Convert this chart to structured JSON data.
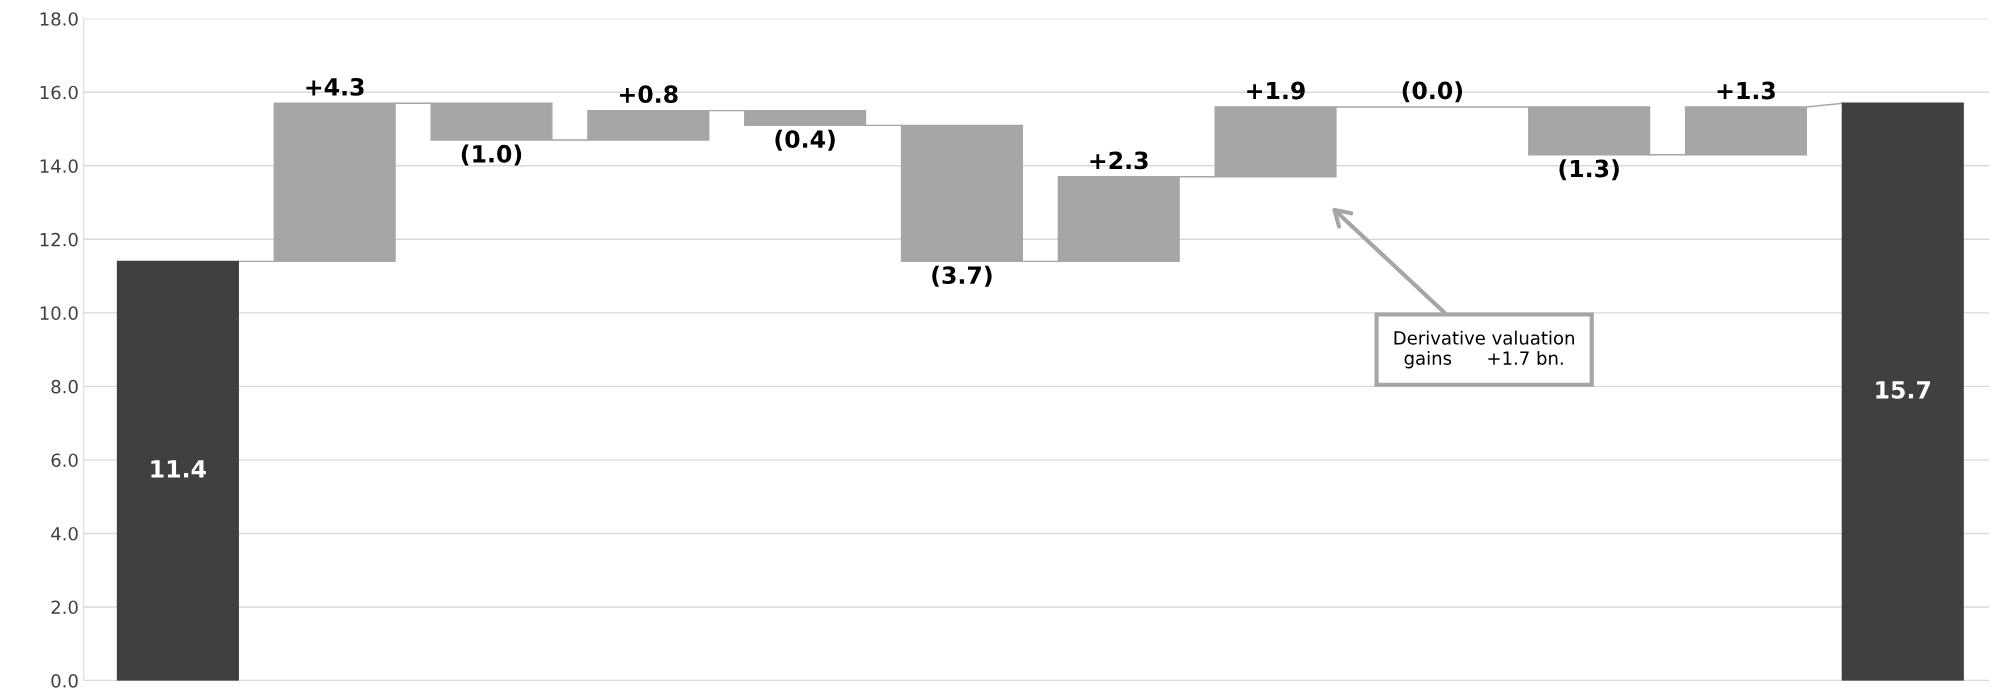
{
  "chart_data": {
    "type": "bar",
    "categories": [
      null,
      null,
      null,
      null,
      null,
      null,
      null,
      null,
      null,
      null,
      null,
      null
    ],
    "values": [
      11.4,
      4.3,
      -1.0,
      0.8,
      -0.4,
      -3.7,
      2.3,
      1.9,
      0.0,
      -1.3,
      1.3,
      15.7
    ],
    "base": [
      0,
      11.4,
      15.7,
      14.7,
      15.5,
      15.1,
      11.4,
      13.7,
      15.6,
      15.6,
      14.3,
      0
    ],
    "colors": [
      "#404040",
      "#a6a6a6",
      "#a6a6a6",
      "#a6a6a6",
      "#a6a6a6",
      "#a6a6a6",
      "#a6a6a6",
      "#a6a6a6",
      "#a6a6a6",
      "#a6a6a6",
      "#a6a6a6",
      "#404040"
    ],
    "value_labels": [
      "11.4",
      "+4.3",
      "(1.0)",
      "+0.8",
      "(0.4)",
      "(3.7)",
      "+2.3",
      "+1.9",
      "(0.0)",
      "(1.3)",
      "+1.3",
      "15.7"
    ],
    "ylim": [
      0,
      18
    ],
    "yticks": [
      {
        "value": 0,
        "label": "0.0"
      },
      {
        "value": 2,
        "label": "2.0"
      },
      {
        "value": 4,
        "label": "4.0"
      },
      {
        "value": 6,
        "label": "6.0"
      },
      {
        "value": 8,
        "label": "8.0"
      },
      {
        "value": 10,
        "label": "10.0"
      },
      {
        "value": 12,
        "label": "12.0"
      },
      {
        "value": 14,
        "label": "14.0"
      },
      {
        "value": 16,
        "label": "16.0"
      },
      {
        "value": 18,
        "label": "18.0"
      }
    ],
    "grid": "y",
    "annotations": [
      "Derivative valuation\ngains      +1.7 bn."
    ]
  }
}
